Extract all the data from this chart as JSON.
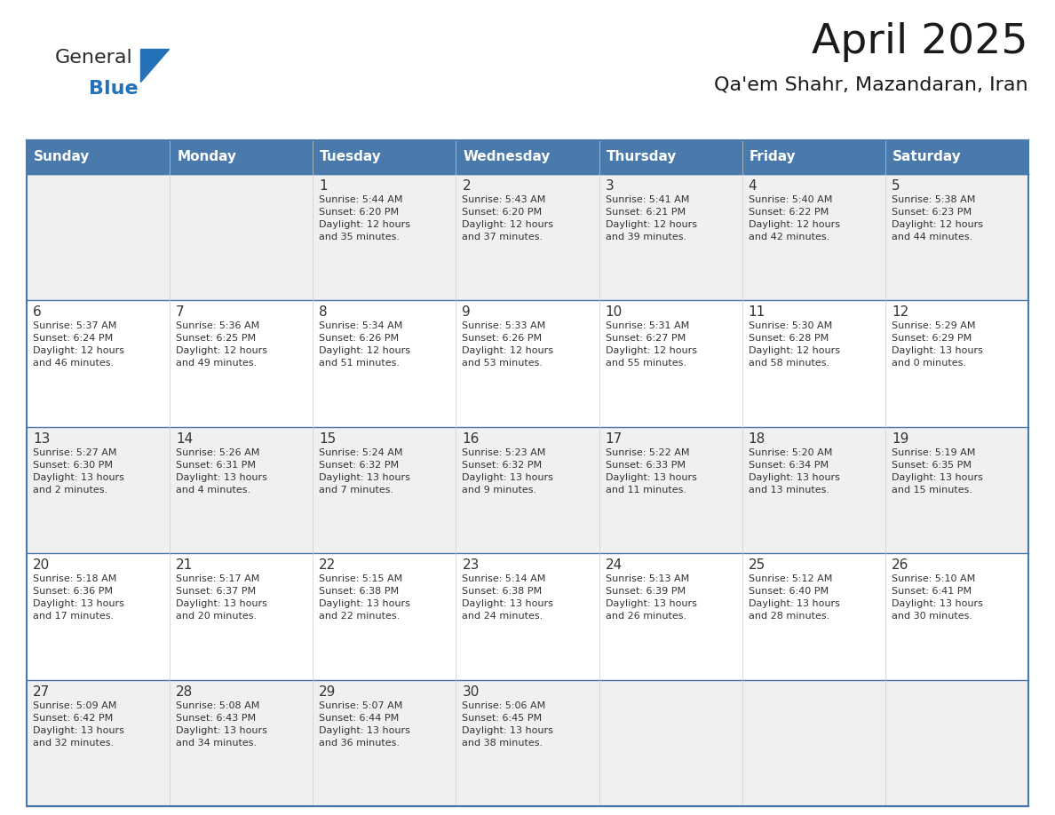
{
  "title": "April 2025",
  "subtitle": "Qa'em Shahr, Mazandaran, Iran",
  "days_of_week": [
    "Sunday",
    "Monday",
    "Tuesday",
    "Wednesday",
    "Thursday",
    "Friday",
    "Saturday"
  ],
  "header_bg": "#4a7aac",
  "header_text": "#ffffff",
  "row_bg_odd": "#f0f0f0",
  "row_bg_even": "#ffffff",
  "cell_border_color": "#4a7aac",
  "row_divider_color": "#4a7aac",
  "text_color": "#333333",
  "calendar_data": [
    [
      {
        "day": "",
        "info": ""
      },
      {
        "day": "",
        "info": ""
      },
      {
        "day": "1",
        "info": "Sunrise: 5:44 AM\nSunset: 6:20 PM\nDaylight: 12 hours\nand 35 minutes."
      },
      {
        "day": "2",
        "info": "Sunrise: 5:43 AM\nSunset: 6:20 PM\nDaylight: 12 hours\nand 37 minutes."
      },
      {
        "day": "3",
        "info": "Sunrise: 5:41 AM\nSunset: 6:21 PM\nDaylight: 12 hours\nand 39 minutes."
      },
      {
        "day": "4",
        "info": "Sunrise: 5:40 AM\nSunset: 6:22 PM\nDaylight: 12 hours\nand 42 minutes."
      },
      {
        "day": "5",
        "info": "Sunrise: 5:38 AM\nSunset: 6:23 PM\nDaylight: 12 hours\nand 44 minutes."
      }
    ],
    [
      {
        "day": "6",
        "info": "Sunrise: 5:37 AM\nSunset: 6:24 PM\nDaylight: 12 hours\nand 46 minutes."
      },
      {
        "day": "7",
        "info": "Sunrise: 5:36 AM\nSunset: 6:25 PM\nDaylight: 12 hours\nand 49 minutes."
      },
      {
        "day": "8",
        "info": "Sunrise: 5:34 AM\nSunset: 6:26 PM\nDaylight: 12 hours\nand 51 minutes."
      },
      {
        "day": "9",
        "info": "Sunrise: 5:33 AM\nSunset: 6:26 PM\nDaylight: 12 hours\nand 53 minutes."
      },
      {
        "day": "10",
        "info": "Sunrise: 5:31 AM\nSunset: 6:27 PM\nDaylight: 12 hours\nand 55 minutes."
      },
      {
        "day": "11",
        "info": "Sunrise: 5:30 AM\nSunset: 6:28 PM\nDaylight: 12 hours\nand 58 minutes."
      },
      {
        "day": "12",
        "info": "Sunrise: 5:29 AM\nSunset: 6:29 PM\nDaylight: 13 hours\nand 0 minutes."
      }
    ],
    [
      {
        "day": "13",
        "info": "Sunrise: 5:27 AM\nSunset: 6:30 PM\nDaylight: 13 hours\nand 2 minutes."
      },
      {
        "day": "14",
        "info": "Sunrise: 5:26 AM\nSunset: 6:31 PM\nDaylight: 13 hours\nand 4 minutes."
      },
      {
        "day": "15",
        "info": "Sunrise: 5:24 AM\nSunset: 6:32 PM\nDaylight: 13 hours\nand 7 minutes."
      },
      {
        "day": "16",
        "info": "Sunrise: 5:23 AM\nSunset: 6:32 PM\nDaylight: 13 hours\nand 9 minutes."
      },
      {
        "day": "17",
        "info": "Sunrise: 5:22 AM\nSunset: 6:33 PM\nDaylight: 13 hours\nand 11 minutes."
      },
      {
        "day": "18",
        "info": "Sunrise: 5:20 AM\nSunset: 6:34 PM\nDaylight: 13 hours\nand 13 minutes."
      },
      {
        "day": "19",
        "info": "Sunrise: 5:19 AM\nSunset: 6:35 PM\nDaylight: 13 hours\nand 15 minutes."
      }
    ],
    [
      {
        "day": "20",
        "info": "Sunrise: 5:18 AM\nSunset: 6:36 PM\nDaylight: 13 hours\nand 17 minutes."
      },
      {
        "day": "21",
        "info": "Sunrise: 5:17 AM\nSunset: 6:37 PM\nDaylight: 13 hours\nand 20 minutes."
      },
      {
        "day": "22",
        "info": "Sunrise: 5:15 AM\nSunset: 6:38 PM\nDaylight: 13 hours\nand 22 minutes."
      },
      {
        "day": "23",
        "info": "Sunrise: 5:14 AM\nSunset: 6:38 PM\nDaylight: 13 hours\nand 24 minutes."
      },
      {
        "day": "24",
        "info": "Sunrise: 5:13 AM\nSunset: 6:39 PM\nDaylight: 13 hours\nand 26 minutes."
      },
      {
        "day": "25",
        "info": "Sunrise: 5:12 AM\nSunset: 6:40 PM\nDaylight: 13 hours\nand 28 minutes."
      },
      {
        "day": "26",
        "info": "Sunrise: 5:10 AM\nSunset: 6:41 PM\nDaylight: 13 hours\nand 30 minutes."
      }
    ],
    [
      {
        "day": "27",
        "info": "Sunrise: 5:09 AM\nSunset: 6:42 PM\nDaylight: 13 hours\nand 32 minutes."
      },
      {
        "day": "28",
        "info": "Sunrise: 5:08 AM\nSunset: 6:43 PM\nDaylight: 13 hours\nand 34 minutes."
      },
      {
        "day": "29",
        "info": "Sunrise: 5:07 AM\nSunset: 6:44 PM\nDaylight: 13 hours\nand 36 minutes."
      },
      {
        "day": "30",
        "info": "Sunrise: 5:06 AM\nSunset: 6:45 PM\nDaylight: 13 hours\nand 38 minutes."
      },
      {
        "day": "",
        "info": ""
      },
      {
        "day": "",
        "info": ""
      },
      {
        "day": "",
        "info": ""
      }
    ]
  ],
  "logo_general_color": "#2a2a2a",
  "logo_blue_color": "#2471b8",
  "triangle_color": "#2471b8",
  "fig_width": 11.88,
  "fig_height": 9.18,
  "fig_dpi": 100
}
